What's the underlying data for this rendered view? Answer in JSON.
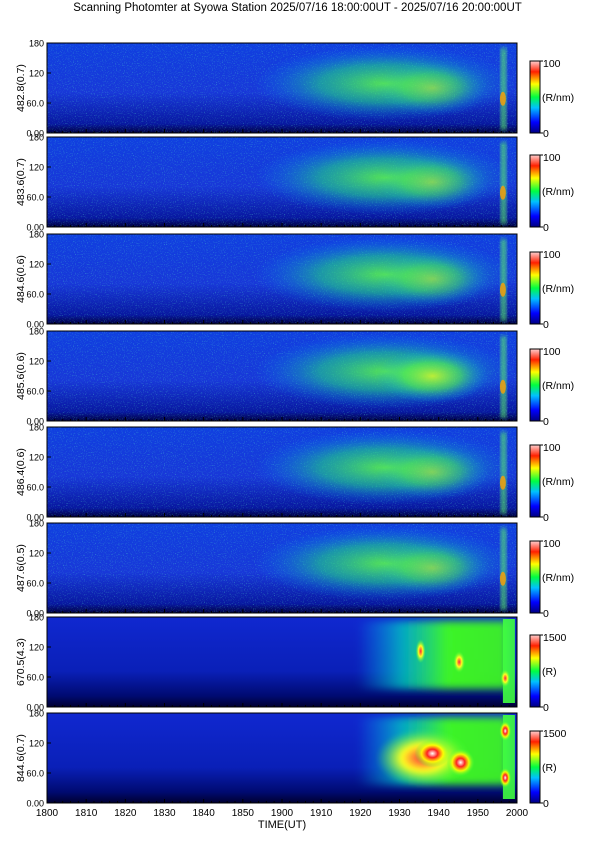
{
  "title": "Scanning Photomter at Syowa Station 2025/07/16 18:00:00UT - 2025/07/16 20:00:00UT",
  "chart_data": {
    "type": "heatmap",
    "xlabel": "TIME(UT)",
    "xticks": [
      "1800",
      "1810",
      "1820",
      "1830",
      "1840",
      "1850",
      "1900",
      "1910",
      "1920",
      "1930",
      "1940",
      "1950",
      "2000"
    ],
    "ylim": [
      0,
      180
    ],
    "yticks": [
      "0.00",
      "60.0",
      "120",
      "180"
    ],
    "panels": [
      {
        "ylabel": "482.8(0.7)",
        "cbar_max": "100",
        "cbar_min": "0",
        "unit": "(R/nm)",
        "kind": "blue"
      },
      {
        "ylabel": "483.6(0.7)",
        "cbar_max": "100",
        "cbar_min": "0",
        "unit": "(R/nm)",
        "kind": "blue"
      },
      {
        "ylabel": "484.6(0.6)",
        "cbar_max": "100",
        "cbar_min": "0",
        "unit": "(R/nm)",
        "kind": "blue"
      },
      {
        "ylabel": "485.6(0.6)",
        "cbar_max": "100",
        "cbar_min": "0",
        "unit": "(R/nm)",
        "kind": "blue"
      },
      {
        "ylabel": "486.4(0.6)",
        "cbar_max": "100",
        "cbar_min": "0",
        "unit": "(R/nm)",
        "kind": "blue"
      },
      {
        "ylabel": "487.6(0.5)",
        "cbar_max": "100",
        "cbar_min": "0",
        "unit": "(R/nm)",
        "kind": "blue"
      },
      {
        "ylabel": "670.5(4.3)",
        "cbar_max": "1500",
        "cbar_min": "0",
        "unit": "(R)",
        "kind": "red"
      },
      {
        "ylabel": "844.6(0.7)",
        "cbar_max": "1500",
        "cbar_min": "0",
        "unit": "(R)",
        "kind": "red2"
      }
    ]
  }
}
